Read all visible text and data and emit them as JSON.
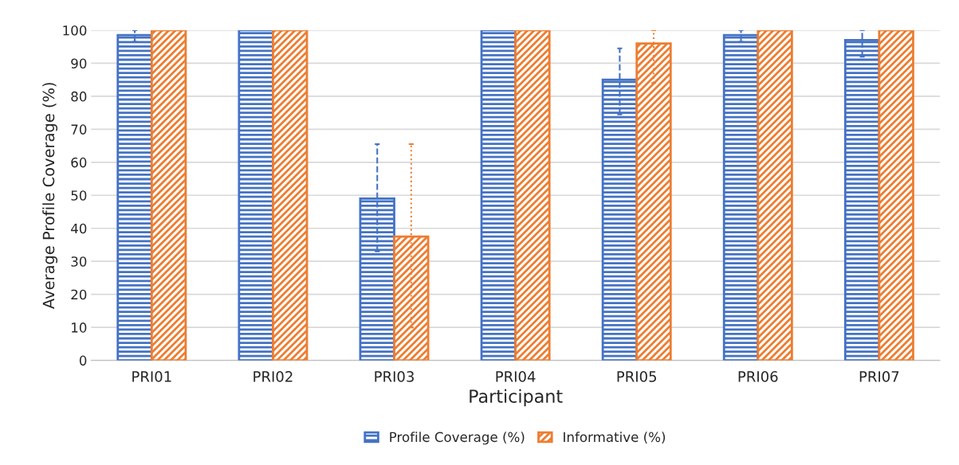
{
  "chart_data": {
    "type": "bar",
    "xlabel": "Participant",
    "ylabel": "Average Profile Coverage (%)",
    "categories": [
      "PRI01",
      "PRI02",
      "PRI03",
      "PRI04",
      "PRI05",
      "PRI06",
      "PRI07"
    ],
    "series": [
      {
        "name": "Profile Coverage (%)",
        "color": "#4472c4",
        "values": [
          98.5,
          100,
          49,
          100,
          85,
          98.5,
          97
        ],
        "errors": [
          [
            96.5,
            100
          ],
          null,
          [
            33,
            65.5
          ],
          null,
          [
            74.5,
            94.5
          ],
          [
            96.5,
            100
          ],
          [
            92,
            100
          ]
        ]
      },
      {
        "name": "Informative (%)",
        "color": "#ed7d31",
        "values": [
          100,
          100,
          37.5,
          100,
          96,
          100,
          100
        ],
        "errors": [
          null,
          null,
          [
            10,
            65.5
          ],
          null,
          [
            84,
            100
          ],
          null,
          null
        ]
      }
    ],
    "ylim": [
      0,
      100
    ],
    "yticks": [
      0,
      10,
      20,
      30,
      40,
      50,
      60,
      70,
      80,
      90,
      100
    ],
    "grid": "y",
    "legend": "bottom"
  }
}
